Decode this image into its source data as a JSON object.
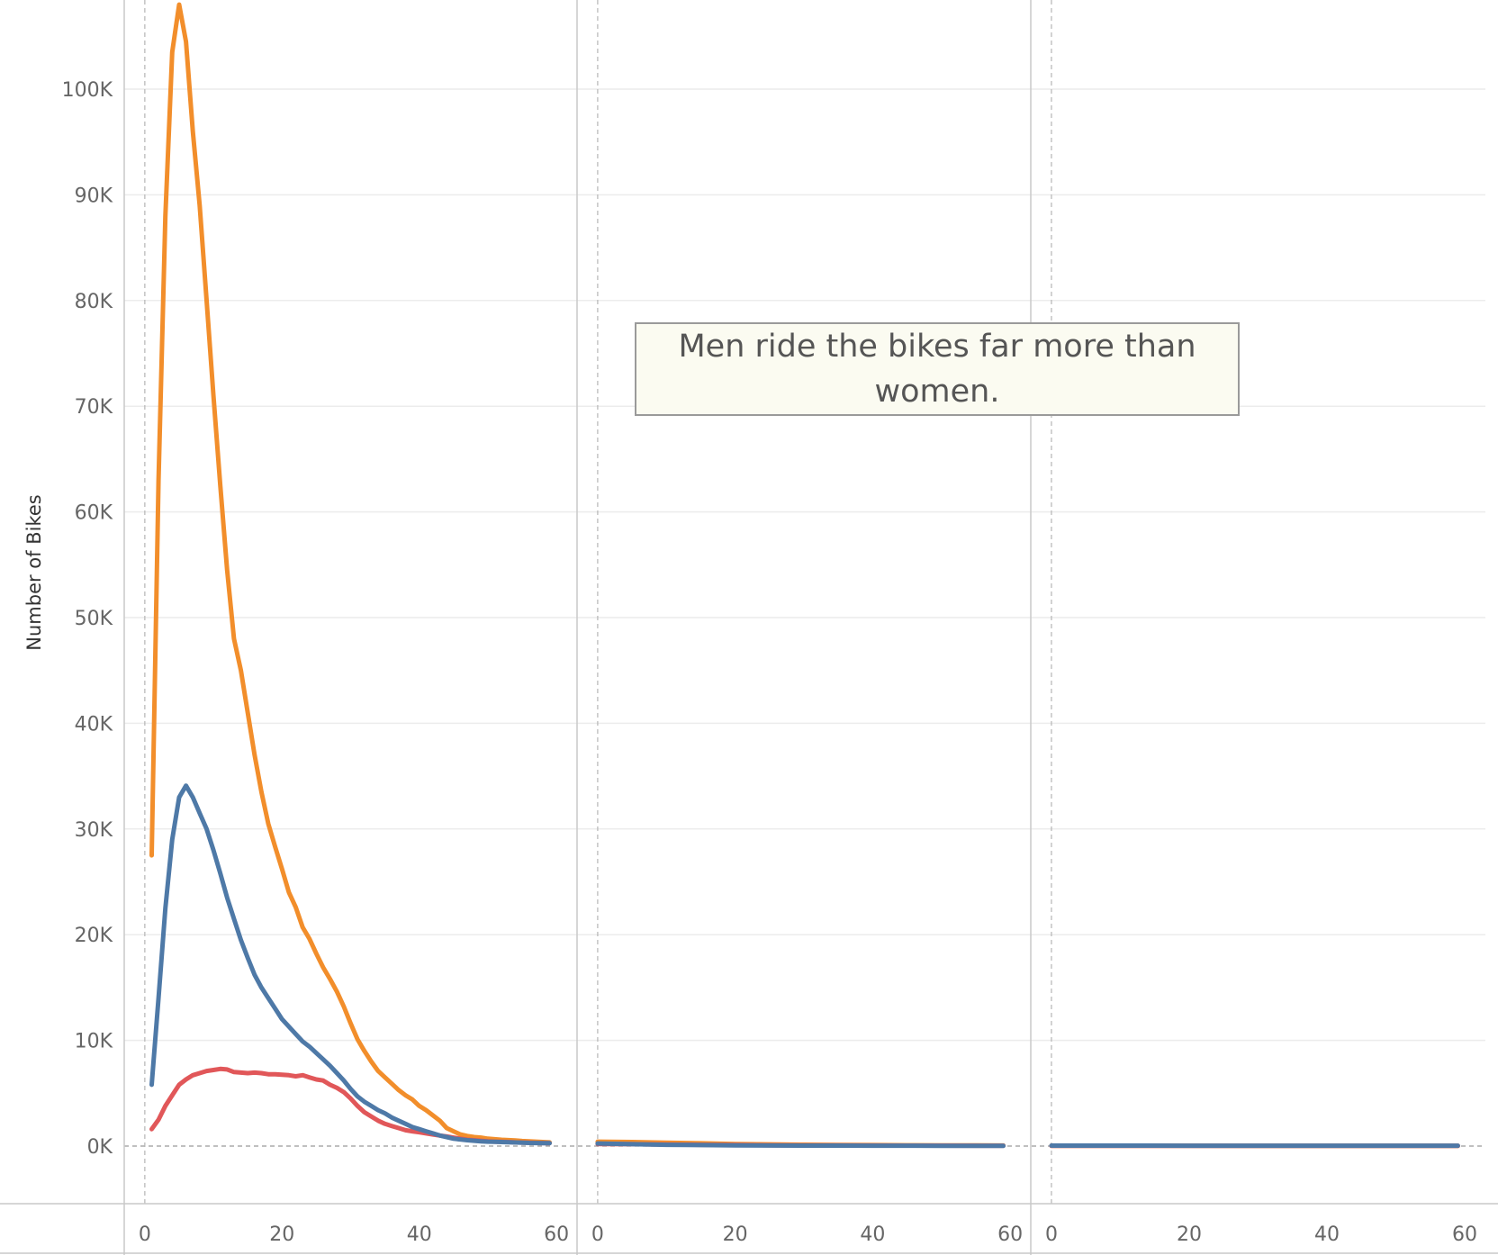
{
  "chart_data": {
    "type": "line",
    "ylabel": "Number of Bikes",
    "ylim": [
      -5500,
      108500
    ],
    "y_ticks": [
      0,
      10000,
      20000,
      30000,
      40000,
      50000,
      60000,
      70000,
      80000,
      90000,
      100000
    ],
    "y_tick_labels": [
      "0K",
      "10K",
      "20K",
      "30K",
      "40K",
      "50K",
      "60K",
      "70K",
      "80K",
      "90K",
      "100K"
    ],
    "x_ticks": [
      0,
      20,
      40,
      60
    ],
    "x_tick_labels": [
      "0",
      "20",
      "40",
      "60"
    ],
    "grid": true,
    "annotation": "Men ride the bikes far more than women.",
    "colors": {
      "orange": "#f28e2b",
      "blue": "#4e79a7",
      "red": "#e15759"
    },
    "panels": [
      {
        "xlim": [
          -3,
          63
        ],
        "series": [
          {
            "color": "#f28e2b",
            "x": [
              1,
              2,
              3,
              4,
              5,
              6,
              7,
              8,
              9,
              10,
              11,
              12,
              13,
              14,
              15,
              16,
              17,
              18,
              19,
              20,
              21,
              22,
              23,
              24,
              25,
              26,
              27,
              28,
              29,
              30,
              31,
              32,
              33,
              34,
              35,
              36,
              37,
              38,
              39,
              40,
              41,
              42,
              43,
              44,
              45,
              46,
              47,
              48,
              49,
              50,
              51,
              52,
              53,
              54,
              55,
              56,
              57,
              58,
              59
            ],
            "y": [
              27500,
              63000,
              88000,
              103500,
              108000,
              104500,
              96000,
              89000,
              80000,
              71000,
              62500,
              54500,
              48000,
              45000,
              41000,
              37000,
              33500,
              30500,
              28300,
              26200,
              24000,
              22600,
              20700,
              19600,
              18200,
              16900,
              15800,
              14600,
              13200,
              11600,
              10100,
              9000,
              8000,
              7100,
              6500,
              5900,
              5300,
              4800,
              4400,
              3800,
              3400,
              2900,
              2400,
              1700,
              1400,
              1100,
              950,
              850,
              800,
              700,
              650,
              600,
              560,
              530,
              480,
              450,
              420,
              380,
              350
            ]
          },
          {
            "color": "#e15759",
            "x": [
              1,
              2,
              3,
              4,
              5,
              6,
              7,
              8,
              9,
              10,
              11,
              12,
              13,
              14,
              15,
              16,
              17,
              18,
              19,
              20,
              21,
              22,
              23,
              24,
              25,
              26,
              27,
              28,
              29,
              30,
              31,
              32,
              33,
              34,
              35,
              36,
              37,
              38,
              39,
              40,
              41,
              42,
              43,
              44,
              45,
              46,
              47,
              48,
              49,
              50,
              51,
              52,
              53,
              54,
              55,
              56,
              57,
              58,
              59
            ],
            "y": [
              1600,
              2500,
              3800,
              4800,
              5800,
              6300,
              6700,
              6900,
              7100,
              7200,
              7300,
              7250,
              7000,
              6950,
              6900,
              6950,
              6900,
              6800,
              6800,
              6750,
              6700,
              6600,
              6700,
              6500,
              6300,
              6200,
              5800,
              5500,
              5100,
              4500,
              3800,
              3200,
              2800,
              2400,
              2100,
              1900,
              1700,
              1500,
              1400,
              1300,
              1200,
              1100,
              1000,
              900,
              800,
              700,
              600,
              550,
              500,
              450,
              420,
              400,
              380,
              350,
              330,
              320,
              300,
              290,
              280
            ]
          },
          {
            "color": "#4e79a7",
            "x": [
              1,
              2,
              3,
              4,
              5,
              6,
              7,
              8,
              9,
              10,
              11,
              12,
              13,
              14,
              15,
              16,
              17,
              18,
              19,
              20,
              21,
              22,
              23,
              24,
              25,
              26,
              27,
              28,
              29,
              30,
              31,
              32,
              33,
              34,
              35,
              36,
              37,
              38,
              39,
              40,
              41,
              42,
              43,
              44,
              45,
              46,
              47,
              48,
              49,
              50,
              51,
              52,
              53,
              54,
              55,
              56,
              57,
              58,
              59
            ],
            "y": [
              5800,
              14000,
              22500,
              29000,
              33000,
              34100,
              33000,
              31500,
              30000,
              28000,
              25800,
              23500,
              21500,
              19500,
              17800,
              16200,
              15000,
              14000,
              13000,
              12000,
              11300,
              10600,
              9900,
              9400,
              8800,
              8200,
              7600,
              6900,
              6200,
              5400,
              4700,
              4200,
              3800,
              3400,
              3100,
              2700,
              2400,
              2100,
              1800,
              1600,
              1400,
              1200,
              1000,
              850,
              700,
              620,
              550,
              500,
              450,
              420,
              400,
              380,
              360,
              340,
              320,
              300,
              290,
              280,
              270
            ]
          }
        ]
      },
      {
        "xlim": [
          -3,
          63
        ],
        "series": [
          {
            "color": "#f28e2b",
            "x": [
              0,
              5,
              10,
              15,
              20,
              25,
              30,
              35,
              40,
              45,
              50,
              55,
              59
            ],
            "y": [
              420,
              380,
              320,
              260,
              200,
              160,
              130,
              110,
              90,
              80,
              70,
              60,
              50
            ]
          },
          {
            "color": "#e15759",
            "x": [
              0,
              5,
              10,
              15,
              20,
              25,
              30,
              35,
              40,
              45,
              50,
              55,
              59
            ],
            "y": [
              200,
              180,
              150,
              120,
              100,
              80,
              70,
              60,
              50,
              45,
              40,
              35,
              30
            ]
          },
          {
            "color": "#4e79a7",
            "x": [
              0,
              5,
              10,
              15,
              20,
              25,
              30,
              35,
              40,
              45,
              50,
              55,
              59
            ],
            "y": [
              250,
              180,
              120,
              90,
              70,
              55,
              45,
              40,
              35,
              30,
              25,
              20,
              20
            ]
          }
        ]
      },
      {
        "xlim": [
          -3,
          63
        ],
        "series": [
          {
            "color": "#f28e2b",
            "x": [
              0,
              10,
              20,
              30,
              40,
              50,
              59
            ],
            "y": [
              30,
              30,
              30,
              25,
              25,
              20,
              20
            ]
          },
          {
            "color": "#e15759",
            "x": [
              0,
              10,
              20,
              30,
              40,
              50,
              59
            ],
            "y": [
              20,
              20,
              20,
              20,
              15,
              15,
              15
            ]
          },
          {
            "color": "#4e79a7",
            "x": [
              0,
              10,
              20,
              30,
              40,
              50,
              59
            ],
            "y": [
              40,
              40,
              35,
              35,
              30,
              30,
              30
            ]
          }
        ]
      }
    ]
  }
}
